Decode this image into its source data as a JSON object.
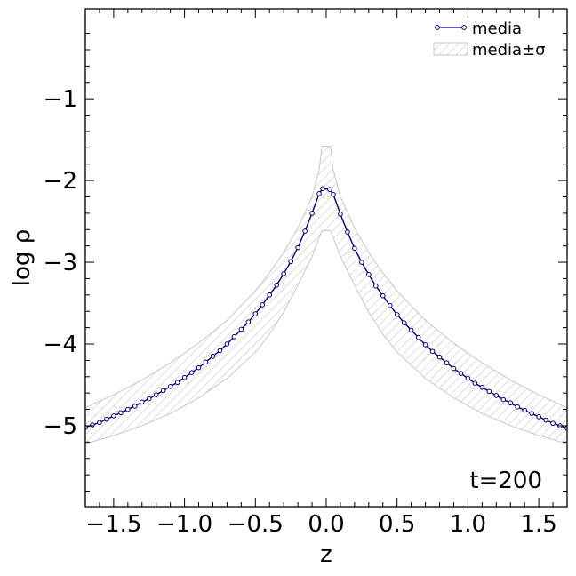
{
  "chart_data": {
    "type": "line",
    "xlabel": "z",
    "ylabel": "log ρ",
    "xlim": [
      -1.7,
      1.7
    ],
    "ylim": [
      -5.99,
      0.1
    ],
    "xticks": [
      -1.5,
      -1.0,
      -0.5,
      0.0,
      0.5,
      1.0,
      1.5
    ],
    "xtick_labels": [
      "−1.5",
      "−1.0",
      "−0.5",
      "0.0",
      "0.5",
      "1.0",
      "1.5"
    ],
    "yticks": [
      -5,
      -4,
      -3,
      -2,
      -1
    ],
    "ytick_labels": [
      "−5",
      "−4",
      "−3",
      "−2",
      "−1"
    ],
    "grid": false,
    "legend_position": "top-right",
    "annotation": "t=200",
    "series": [
      {
        "name": "media",
        "type": "line",
        "color": "#000080",
        "marker": "circle",
        "x": [
          -1.7,
          -1.65,
          -1.6,
          -1.55,
          -1.5,
          -1.45,
          -1.4,
          -1.35,
          -1.3,
          -1.25,
          -1.2,
          -1.15,
          -1.1,
          -1.05,
          -1.0,
          -0.95,
          -0.9,
          -0.85,
          -0.8,
          -0.75,
          -0.7,
          -0.65,
          -0.6,
          -0.55,
          -0.5,
          -0.45,
          -0.4,
          -0.35,
          -0.3,
          -0.25,
          -0.2,
          -0.15,
          -0.1,
          -0.05,
          -0.025,
          0.025,
          0.05,
          0.1,
          0.15,
          0.2,
          0.25,
          0.3,
          0.35,
          0.4,
          0.45,
          0.5,
          0.55,
          0.6,
          0.65,
          0.7,
          0.75,
          0.8,
          0.85,
          0.9,
          0.95,
          1.0,
          1.05,
          1.1,
          1.15,
          1.2,
          1.25,
          1.3,
          1.35,
          1.4,
          1.45,
          1.5,
          1.55,
          1.6,
          1.65,
          1.7
        ],
        "y": [
          -5.02,
          -4.99,
          -4.96,
          -4.92,
          -4.88,
          -4.84,
          -4.8,
          -4.76,
          -4.71,
          -4.67,
          -4.62,
          -4.57,
          -4.52,
          -4.47,
          -4.41,
          -4.35,
          -4.29,
          -4.22,
          -4.15,
          -4.08,
          -4.0,
          -3.91,
          -3.82,
          -3.73,
          -3.63,
          -3.52,
          -3.4,
          -3.28,
          -3.14,
          -2.99,
          -2.82,
          -2.62,
          -2.4,
          -2.16,
          -2.1,
          -2.11,
          -2.17,
          -2.41,
          -2.63,
          -2.83,
          -3.0,
          -3.15,
          -3.29,
          -3.41,
          -3.53,
          -3.64,
          -3.74,
          -3.83,
          -3.92,
          -4.01,
          -4.09,
          -4.16,
          -4.23,
          -4.3,
          -4.36,
          -4.42,
          -4.48,
          -4.53,
          -4.58,
          -4.63,
          -4.68,
          -4.72,
          -4.77,
          -4.81,
          -4.85,
          -4.89,
          -4.93,
          -4.97,
          -5.0,
          -5.03
        ]
      },
      {
        "name": "media±σ",
        "type": "band",
        "color": "#bbbbbb",
        "hatch": "////",
        "x": [
          -1.7,
          -1.5,
          -1.3,
          -1.1,
          -0.9,
          -0.7,
          -0.5,
          -0.4,
          -0.3,
          -0.2,
          -0.1,
          -0.05,
          -0.03,
          0.03,
          0.05,
          0.1,
          0.2,
          0.3,
          0.4,
          0.5,
          0.7,
          0.9,
          1.1,
          1.3,
          1.5,
          1.7
        ],
        "upper": [
          -4.78,
          -4.62,
          -4.44,
          -4.23,
          -3.99,
          -3.71,
          -3.35,
          -3.13,
          -2.88,
          -2.58,
          -2.2,
          -1.87,
          -1.58,
          -1.58,
          -1.87,
          -2.2,
          -2.58,
          -2.88,
          -3.13,
          -3.35,
          -3.71,
          -3.99,
          -4.23,
          -4.44,
          -4.62,
          -4.78
        ],
        "lower": [
          -5.22,
          -5.12,
          -5.0,
          -4.85,
          -4.66,
          -4.42,
          -4.1,
          -3.88,
          -3.61,
          -3.28,
          -2.93,
          -2.7,
          -2.61,
          -2.61,
          -2.7,
          -2.93,
          -3.28,
          -3.61,
          -3.88,
          -4.1,
          -4.42,
          -4.66,
          -4.85,
          -5.0,
          -5.12,
          -5.22
        ]
      }
    ]
  }
}
